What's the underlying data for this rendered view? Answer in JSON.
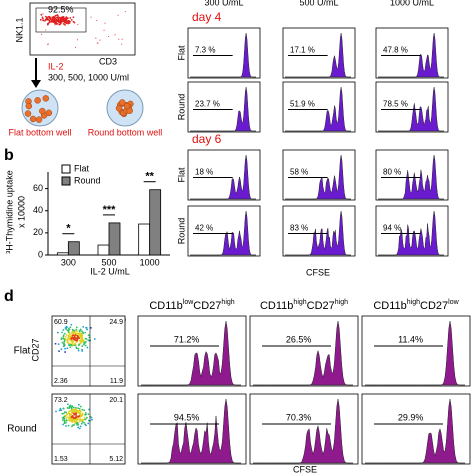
{
  "panel_a": {
    "gate_percent": "92.5%",
    "y_axis": "NK1.1",
    "x_axis": "CD3",
    "treatment": "IL-2",
    "doses": "300, 500, 1000 U/ml",
    "wells": [
      "Flat bottom well",
      "Round bottom well"
    ]
  },
  "chart_data": {
    "type": "bar",
    "panel_label": "b",
    "ylabel": "³H-Thymidine uptake",
    "ylabel_unit": "x 10000",
    "xlabel": "IL-2 U/mL",
    "categories": [
      "300",
      "500",
      "1000"
    ],
    "series": [
      {
        "name": "Flat",
        "color": "#ffffff",
        "values": [
          2,
          9,
          28
        ]
      },
      {
        "name": "Round",
        "color": "#808080",
        "values": [
          12,
          29,
          59
        ]
      }
    ],
    "significance": [
      "*",
      "***",
      "**"
    ],
    "ylim": [
      0,
      75
    ],
    "yticks": [
      0,
      20,
      40,
      60
    ]
  },
  "panel_c": {
    "columns": [
      "300 U/mL",
      "500 U/mL",
      "1000 U/mL"
    ],
    "days": [
      {
        "label": "day 4",
        "rows": [
          {
            "name": "Flat",
            "values": [
              "7.3 %",
              "17.1 %",
              "47.8 %"
            ]
          },
          {
            "name": "Round",
            "values": [
              "23.7 %",
              "51.9 %",
              "78.5 %"
            ]
          }
        ]
      },
      {
        "label": "day 6",
        "rows": [
          {
            "name": "Flat",
            "values": [
              "18 %",
              "58 %",
              "80 %"
            ]
          },
          {
            "name": "Round",
            "values": [
              "42 %",
              "83 %",
              "94 %"
            ]
          }
        ]
      }
    ],
    "xlabel": "CFSE"
  },
  "panel_d": {
    "label": "d",
    "unit": "(%)",
    "y_axis": "CD27",
    "columns": [
      {
        "base": "CD11b",
        "sup1": "low",
        "mid": "CD27",
        "sup2": "high"
      },
      {
        "base": "CD11b",
        "sup1": "high",
        "mid": "CD27",
        "sup2": "high"
      },
      {
        "base": "CD11b",
        "sup1": "high",
        "mid": "CD27",
        "sup2": "low"
      }
    ],
    "rows": [
      {
        "name": "Flat",
        "quadrants": [
          "60.9",
          "24.9",
          "2.36",
          "11.9"
        ],
        "values": [
          "71.2%",
          "26.5%",
          "11.4%"
        ]
      },
      {
        "name": "Round",
        "quadrants": [
          "73.2",
          "20.1",
          "1.53",
          "5.12"
        ],
        "values": [
          "94.5%",
          "70.3%",
          "29.9%"
        ]
      }
    ],
    "xlabel": "CFSE"
  }
}
